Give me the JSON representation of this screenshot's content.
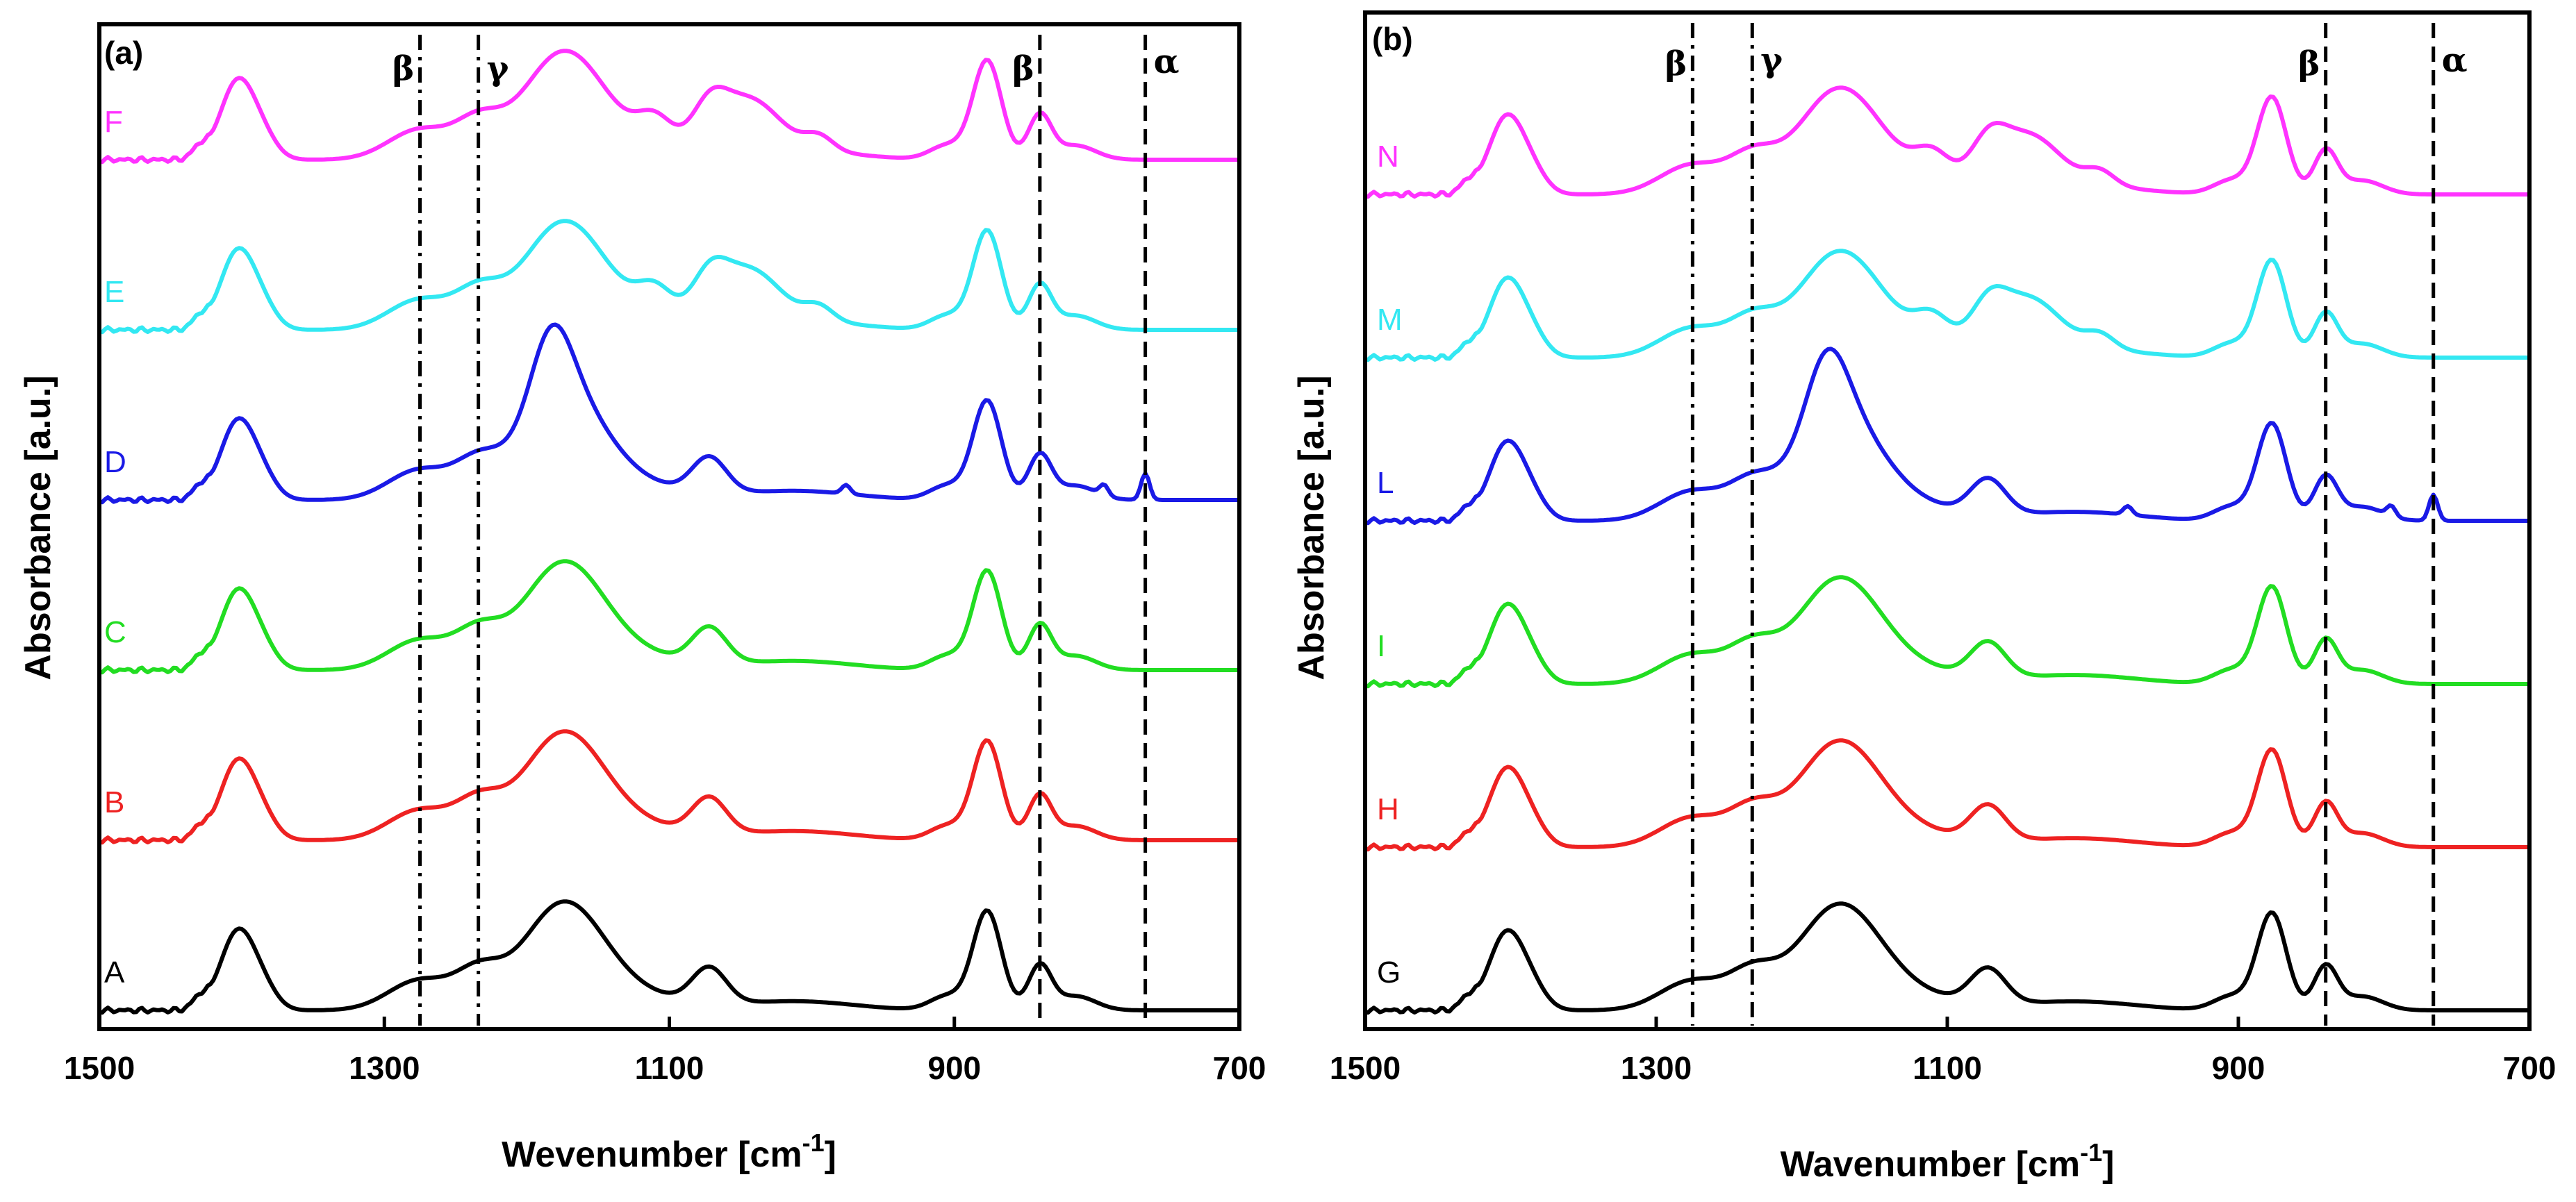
{
  "chart_data": [
    {
      "type": "line",
      "panel_label": "(a)",
      "xlabel": "Wevenumber [cm",
      "xlabel_sup": "-1",
      "xlabel_end": "]",
      "ylabel": "Absorbance [a.u.]",
      "xlim": [
        1500,
        700
      ],
      "x_reversed": true,
      "x_ticks": [
        "1500",
        "1300",
        "1100",
        "900",
        "700"
      ],
      "y_ticks_shown": false,
      "reference_lines": [
        {
          "x": 1275,
          "label": "β",
          "style": "dashdot"
        },
        {
          "x": 1234,
          "label": "γ",
          "style": "dashdot"
        },
        {
          "x": 840,
          "label": "β",
          "style": "dash"
        },
        {
          "x": 766,
          "label": "α",
          "style": "dash"
        }
      ],
      "series": [
        {
          "name": "F",
          "color": "#ff33ff",
          "offset": 5.0
        },
        {
          "name": "E",
          "color": "#33e8f2",
          "offset": 4.0
        },
        {
          "name": "D",
          "color": "#1a1ae6",
          "offset": 3.0
        },
        {
          "name": "C",
          "color": "#22dd22",
          "offset": 2.0
        },
        {
          "name": "B",
          "color": "#ee2222",
          "offset": 1.0
        },
        {
          "name": "A",
          "color": "#000000",
          "offset": 0.0
        }
      ]
    },
    {
      "type": "line",
      "panel_label": "(b)",
      "xlabel": "Wavenumber [cm",
      "xlabel_sup": "-1",
      "xlabel_end": "]",
      "ylabel": "Absorbance [a.u.]",
      "xlim": [
        1500,
        700
      ],
      "x_reversed": true,
      "x_ticks": [
        "1500",
        "1300",
        "1100",
        "900",
        "700"
      ],
      "y_ticks_shown": false,
      "reference_lines": [
        {
          "x": 1275,
          "label": "β",
          "style": "dashdot"
        },
        {
          "x": 1234,
          "label": "γ",
          "style": "dashdot"
        },
        {
          "x": 840,
          "label": "β",
          "style": "dash"
        },
        {
          "x": 766,
          "label": "α",
          "style": "dash"
        }
      ],
      "series": [
        {
          "name": "N",
          "color": "#ff33ff",
          "offset": 5.0
        },
        {
          "name": "M",
          "color": "#33e8f2",
          "offset": 4.0
        },
        {
          "name": "L",
          "color": "#1a1ae6",
          "offset": 3.0
        },
        {
          "name": "I",
          "color": "#22dd22",
          "offset": 2.0
        },
        {
          "name": "H",
          "color": "#ee2222",
          "offset": 1.0
        },
        {
          "name": "G",
          "color": "#000000",
          "offset": 0.0
        }
      ]
    }
  ],
  "spectral_peaks": {
    "common": [
      {
        "x": 1403,
        "h": 0.44,
        "w": 12
      },
      {
        "x": 1385,
        "h": 0.1,
        "w": 10
      },
      {
        "x": 1430,
        "h": 0.06,
        "w": 5
      },
      {
        "x": 1275,
        "h": 0.17,
        "w": 22
      },
      {
        "x": 1234,
        "h": 0.18,
        "w": 16
      },
      {
        "x": 1175,
        "h": 0.54,
        "w": 28
      },
      {
        "x": 1140,
        "h": 0.1,
        "w": 45
      },
      {
        "x": 1072,
        "h": 0.2,
        "w": 12
      },
      {
        "x": 1010,
        "h": 0.05,
        "w": 40
      },
      {
        "x": 877,
        "h": 0.56,
        "w": 10
      },
      {
        "x": 905,
        "h": 0.08,
        "w": 12
      },
      {
        "x": 840,
        "h": 0.25,
        "w": 8
      },
      {
        "x": 815,
        "h": 0.08,
        "w": 14
      }
    ],
    "variants": {
      "E": [
        {
          "x": 1110,
          "h": 0.15,
          "w": 12
        },
        {
          "x": 1045,
          "h": 0.3,
          "w": 22
        },
        {
          "x": 995,
          "h": 0.08,
          "w": 10
        }
      ],
      "D": [
        {
          "x": 1183,
          "h": 0.4,
          "w": 14
        },
        {
          "x": 976,
          "h": 0.05,
          "w": 3
        },
        {
          "x": 795,
          "h": 0.06,
          "w": 3
        },
        {
          "x": 766,
          "h": 0.15,
          "w": 3
        }
      ]
    }
  }
}
